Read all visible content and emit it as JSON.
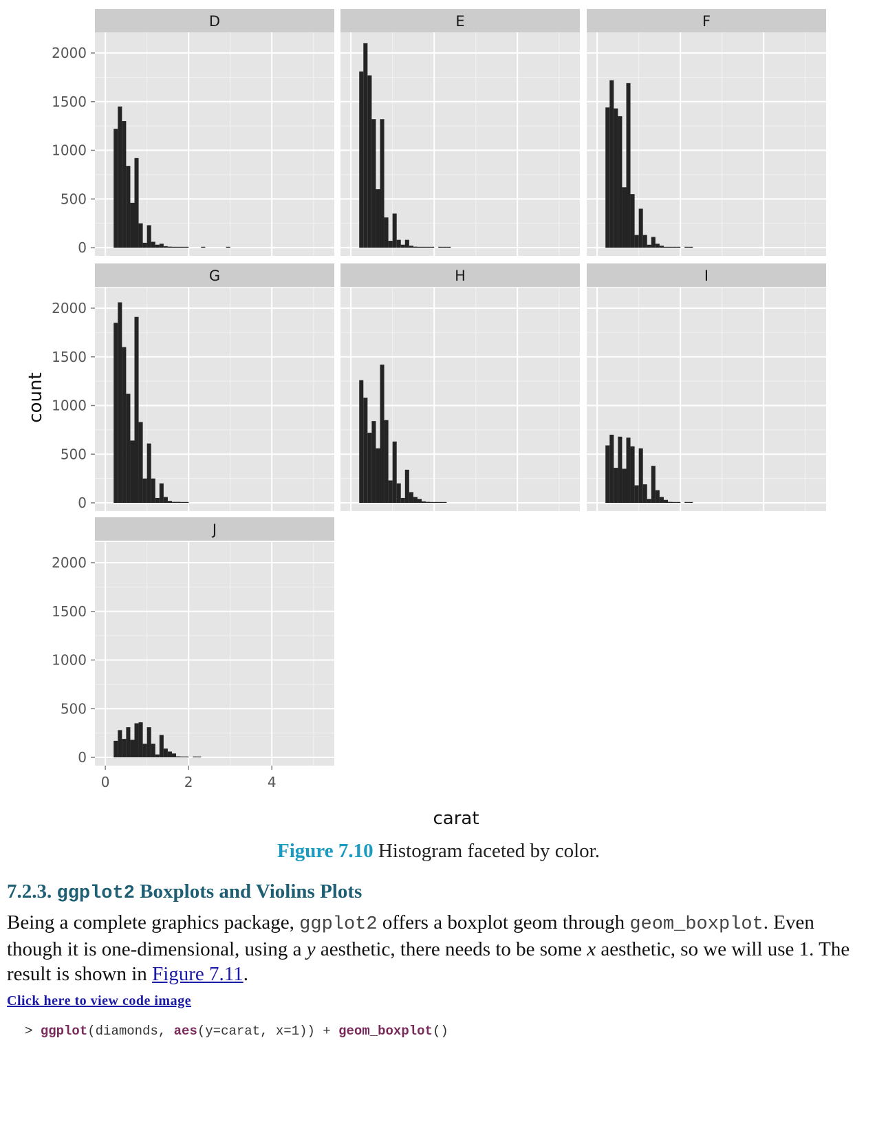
{
  "chart_data": {
    "type": "histogram",
    "facet_by": "color",
    "ylabel": "count",
    "xlabel": "carat",
    "ylim": [
      0,
      2200
    ],
    "xlim": [
      -0.25,
      5.5
    ],
    "yticks": [
      "0",
      "500",
      "1000",
      "1500",
      "2000"
    ],
    "xticks": [
      "0",
      "2",
      "4"
    ],
    "bin_start": 0.2,
    "bin_width": 0.1,
    "colors": {
      "panel": "#e5e5e5",
      "grid_major": "#ffffff",
      "grid_minor": "#f2f2f2",
      "strip": "#cccccc",
      "bar": "#242424"
    },
    "facets": [
      {
        "name": "D",
        "values": [
          1220,
          1450,
          1300,
          840,
          460,
          920,
          250,
          50,
          230,
          60,
          30,
          40,
          15,
          10,
          5,
          5,
          5,
          5,
          0,
          0,
          0,
          5,
          0,
          0,
          0,
          0,
          0,
          5
        ]
      },
      {
        "name": "E",
        "values": [
          1810,
          2100,
          1770,
          1320,
          600,
          1320,
          310,
          70,
          350,
          80,
          30,
          80,
          20,
          10,
          5,
          5,
          5,
          5,
          0,
          5,
          5,
          5
        ]
      },
      {
        "name": "F",
        "values": [
          1440,
          1720,
          1430,
          1350,
          620,
          1690,
          550,
          130,
          400,
          130,
          30,
          110,
          40,
          20,
          5,
          5,
          5,
          5,
          0,
          5,
          5
        ]
      },
      {
        "name": "G",
        "values": [
          1850,
          2060,
          1600,
          1120,
          640,
          1910,
          830,
          250,
          610,
          250,
          50,
          200,
          60,
          20,
          10,
          10,
          5,
          5
        ]
      },
      {
        "name": "H",
        "values": [
          1260,
          1080,
          720,
          840,
          560,
          1420,
          850,
          230,
          630,
          200,
          50,
          340,
          110,
          60,
          40,
          15,
          10,
          5,
          5,
          5,
          5
        ]
      },
      {
        "name": "I",
        "values": [
          590,
          700,
          360,
          680,
          350,
          670,
          580,
          180,
          560,
          190,
          40,
          380,
          130,
          60,
          30,
          10,
          5,
          5,
          0,
          5,
          5
        ]
      },
      {
        "name": "J",
        "values": [
          170,
          280,
          190,
          310,
          180,
          350,
          360,
          140,
          310,
          140,
          30,
          230,
          90,
          60,
          40,
          10,
          5,
          5,
          0,
          5,
          5
        ]
      }
    ]
  },
  "caption": {
    "label": "Figure 7.10",
    "text": " Histogram faceted by color."
  },
  "section": {
    "number": "7.2.3.",
    "code": "ggplot2",
    "title": " Boxplots and Violins Plots"
  },
  "paragraph": {
    "p1": "Being a complete graphics package, ",
    "code1": "ggplot2",
    "p2": " offers a boxplot geom through ",
    "code2": "geom_boxplot",
    "p3": ". Even though it is one-dimensional, using a ",
    "y": "y",
    "p4": " aesthetic, there needs to be some ",
    "x": "x",
    "p5": " aesthetic, so we will use 1. The result is shown in ",
    "link": "Figure 7.11",
    "p6": "."
  },
  "code_link": "Click here to view code image",
  "code": {
    "prompt": "> ",
    "fn1": "ggplot",
    "args1": "(diamonds, ",
    "fn2": "aes",
    "args2": "(y=carat, x=1)) + ",
    "fn3": "geom_boxplot",
    "args3": "()"
  }
}
